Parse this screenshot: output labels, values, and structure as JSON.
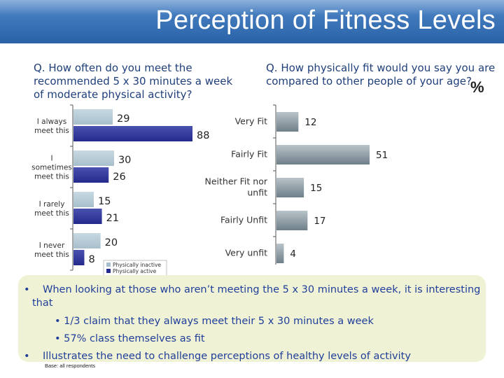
{
  "title": "Perception of Fitness Levels",
  "questions": {
    "q1": "Q. How often do you meet the recommended 5 x 30 minutes a week of moderate physical activity?",
    "q2": "Q. How physically fit would you say you are compared to other people of your age?"
  },
  "percent_symbol": "%",
  "bullets": {
    "b1": "When looking at those who aren’t meeting the 5 x 30 minutes a week, it is interesting that",
    "b2": "1/3 claim that they always meet their 5 x 30 minutes a week",
    "b3": "57% class themselves as fit",
    "b4": "Illustrates the need to challenge perceptions of healthy levels of activity",
    "bullet_char": "•"
  },
  "base_note": "Base: all respondents",
  "colors": {
    "inactive": "#a7bfcc",
    "active": "#232a8c",
    "fit_bar": "#8a99a3",
    "title_bg": "#3a72b8",
    "notes_bg": "#f0f2d6"
  },
  "chart_data": [
    {
      "type": "bar",
      "orientation": "horizontal",
      "categories": [
        [
          "I always",
          "meet this"
        ],
        [
          "I",
          "sometimes",
          "meet this"
        ],
        [
          "I rarely",
          "meet this"
        ],
        [
          "I never",
          "meet this"
        ]
      ],
      "series": [
        {
          "name": "Physically inactive",
          "values": [
            29,
            30,
            15,
            20
          ]
        },
        {
          "name": "Physically active",
          "values": [
            88,
            26,
            21,
            8
          ]
        }
      ],
      "xlim": [
        0,
        100
      ],
      "legend": "bottom-right"
    },
    {
      "type": "bar",
      "orientation": "horizontal",
      "categories": [
        [
          "Very Fit"
        ],
        [
          "Fairly Fit"
        ],
        [
          "Neither Fit nor",
          "unfit"
        ],
        [
          "Fairly Unfit"
        ],
        [
          "Very unfit"
        ]
      ],
      "values": [
        12,
        51,
        15,
        17,
        4
      ],
      "xlim": [
        0,
        60
      ]
    }
  ]
}
